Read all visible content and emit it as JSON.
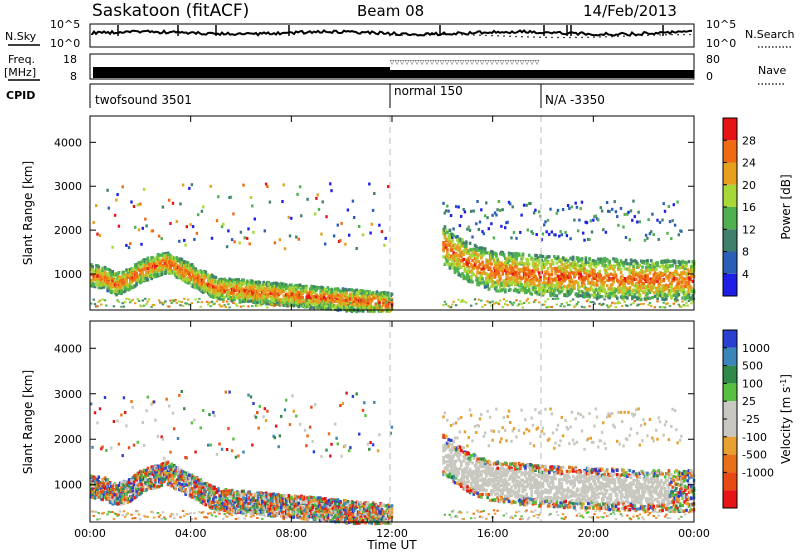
{
  "header": {
    "station": "Saskatoon (fitACF)",
    "beam": "Beam 08",
    "date": "14/Feb/2013"
  },
  "noise_panel": {
    "left_label": "N.Sky",
    "right_label": "N.Search",
    "left_ticks": [
      "10^5",
      "10^0"
    ],
    "right_ticks": [
      "10^5",
      "10^0"
    ]
  },
  "freq_panel": {
    "left_label_1": "Freq.",
    "left_label_2": "[MHz]",
    "right_label": "Nave",
    "left_ticks": [
      "18",
      "8"
    ],
    "right_ticks": [
      "80",
      "0"
    ]
  },
  "cpid_panel": {
    "label": "CPID",
    "segments": [
      {
        "label": "twofsound 3501",
        "start_hour": 0
      },
      {
        "label": "normal 150",
        "start_hour": 12
      },
      {
        "label": "N/A -3350",
        "start_hour": 18
      }
    ]
  },
  "colors": {
    "power_scale": [
      "#1e1ee6",
      "#2a5fb8",
      "#3f7f6b",
      "#4fb04f",
      "#a8d838",
      "#e6a01e",
      "#f06a14",
      "#e61414"
    ],
    "velocity_scale": [
      "#2a3fd0",
      "#3a86b8",
      "#2f8a4a",
      "#58c040",
      "#c8c8c0",
      "#c8c8c0",
      "#e8a030",
      "#e87018",
      "#e84a14",
      "#e61414"
    ],
    "dashed_line": "#c8c8c8"
  },
  "chart_data": [
    {
      "type": "heatmap",
      "name": "power-panel",
      "xlabel": "",
      "ylabel": "Slant Range [km]",
      "xlim": [
        0,
        24
      ],
      "ylim": [
        180,
        4600
      ],
      "yticks": [
        1000,
        2000,
        3000,
        4000
      ],
      "colorbar": {
        "label": "Power [dB]",
        "ticks": [
          4,
          8,
          12,
          16,
          20,
          24,
          28
        ],
        "range": [
          0,
          32
        ]
      },
      "dashed_x": [
        12,
        18
      ],
      "series": [
        {
          "hours": [
            0,
            0.5,
            1,
            1.5,
            2,
            3,
            4,
            5,
            6,
            7,
            8,
            9,
            10,
            11,
            12,
            14,
            15,
            16,
            18,
            20,
            22,
            24
          ],
          "range_km": [
            1000,
            950,
            800,
            900,
            1100,
            1300,
            1000,
            700,
            650,
            600,
            550,
            500,
            450,
            400,
            350,
            1700,
            1300,
            1100,
            1000,
            950,
            900,
            900
          ]
        }
      ]
    },
    {
      "type": "heatmap",
      "name": "velocity-panel",
      "xlabel": "Time UT",
      "ylabel": "Slant Range [km]",
      "xlim": [
        0,
        24
      ],
      "ylim": [
        180,
        4600
      ],
      "xticks": [
        "00:00",
        "04:00",
        "08:00",
        "12:00",
        "16:00",
        "20:00",
        "00:00"
      ],
      "yticks": [
        1000,
        2000,
        3000,
        4000
      ],
      "colorbar": {
        "label": "Velocity [m s-1]",
        "ticks": [
          1000,
          500,
          100,
          25,
          -25,
          -100,
          -500,
          -1000
        ]
      },
      "dashed_x": [
        12,
        18
      ]
    }
  ]
}
